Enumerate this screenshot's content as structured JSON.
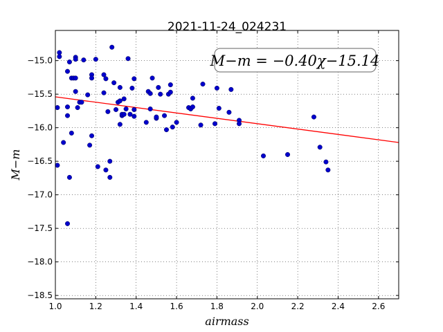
{
  "chart_data": {
    "type": "scatter",
    "title": "2021-11-24_024231",
    "xlabel": "airmass",
    "ylabel": "M−m",
    "xlim": [
      1.0,
      2.7
    ],
    "ylim": [
      -18.55,
      -14.55
    ],
    "y_inverted": true,
    "grid": true,
    "x_ticks": [
      "1.0",
      "1.2",
      "1.4",
      "1.6",
      "1.8",
      "2.0",
      "2.2",
      "2.4",
      "2.6"
    ],
    "y_ticks": [
      "−15.0",
      "−15.5",
      "−16.0",
      "−16.5",
      "−17.0",
      "−17.5",
      "−18.0",
      "−18.5"
    ],
    "annotation": "M−m = −0.40χ−15.14",
    "fit": {
      "slope": -0.4,
      "intercept": -15.14,
      "color": "#ff0000"
    },
    "point_color": "#0000cc",
    "points": [
      [
        1.01,
        -16.56
      ],
      [
        1.01,
        -15.7
      ],
      [
        1.02,
        -14.88
      ],
      [
        1.02,
        -14.94
      ],
      [
        1.04,
        -16.22
      ],
      [
        1.06,
        -17.43
      ],
      [
        1.06,
        -15.16
      ],
      [
        1.06,
        -15.69
      ],
      [
        1.06,
        -15.82
      ],
      [
        1.07,
        -16.74
      ],
      [
        1.07,
        -15.02
      ],
      [
        1.08,
        -16.08
      ],
      [
        1.08,
        -15.26
      ],
      [
        1.09,
        -15.26
      ],
      [
        1.1,
        -14.95
      ],
      [
        1.1,
        -14.98
      ],
      [
        1.1,
        -15.46
      ],
      [
        1.1,
        -15.26
      ],
      [
        1.11,
        -15.7
      ],
      [
        1.12,
        -15.62
      ],
      [
        1.13,
        -15.62
      ],
      [
        1.14,
        -14.99
      ],
      [
        1.16,
        -15.51
      ],
      [
        1.17,
        -16.26
      ],
      [
        1.18,
        -16.12
      ],
      [
        1.18,
        -15.21
      ],
      [
        1.18,
        -15.26
      ],
      [
        1.2,
        -14.98
      ],
      [
        1.21,
        -16.58
      ],
      [
        1.24,
        -15.48
      ],
      [
        1.24,
        -15.21
      ],
      [
        1.25,
        -16.63
      ],
      [
        1.25,
        -15.27
      ],
      [
        1.26,
        -15.76
      ],
      [
        1.27,
        -16.5
      ],
      [
        1.27,
        -16.74
      ],
      [
        1.28,
        -14.8
      ],
      [
        1.29,
        -15.33
      ],
      [
        1.3,
        -15.73
      ],
      [
        1.31,
        -15.62
      ],
      [
        1.32,
        -15.95
      ],
      [
        1.32,
        -15.6
      ],
      [
        1.32,
        -15.4
      ],
      [
        1.33,
        -15.82
      ],
      [
        1.33,
        -15.8
      ],
      [
        1.34,
        -15.57
      ],
      [
        1.34,
        -15.8
      ],
      [
        1.35,
        -15.72
      ],
      [
        1.36,
        -14.97
      ],
      [
        1.37,
        -15.8
      ],
      [
        1.38,
        -15.41
      ],
      [
        1.39,
        -15.27
      ],
      [
        1.39,
        -15.73
      ],
      [
        1.39,
        -15.83
      ],
      [
        1.45,
        -15.92
      ],
      [
        1.46,
        -15.46
      ],
      [
        1.47,
        -15.49
      ],
      [
        1.47,
        -15.72
      ],
      [
        1.48,
        -15.26
      ],
      [
        1.5,
        -15.86
      ],
      [
        1.5,
        -15.84
      ],
      [
        1.51,
        -15.4
      ],
      [
        1.52,
        -15.5
      ],
      [
        1.54,
        -15.82
      ],
      [
        1.55,
        -16.03
      ],
      [
        1.56,
        -15.5
      ],
      [
        1.57,
        -15.36
      ],
      [
        1.57,
        -15.47
      ],
      [
        1.58,
        -15.99
      ],
      [
        1.6,
        -15.92
      ],
      [
        1.66,
        -15.7
      ],
      [
        1.67,
        -15.72
      ],
      [
        1.68,
        -15.69
      ],
      [
        1.68,
        -15.56
      ],
      [
        1.72,
        -15.96
      ],
      [
        1.73,
        -15.35
      ],
      [
        1.79,
        -15.94
      ],
      [
        1.8,
        -15.41
      ],
      [
        1.81,
        -15.71
      ],
      [
        1.86,
        -15.77
      ],
      [
        1.87,
        -15.43
      ],
      [
        1.91,
        -15.89
      ],
      [
        1.91,
        -15.94
      ],
      [
        2.03,
        -16.42
      ],
      [
        2.15,
        -16.4
      ],
      [
        2.28,
        -15.84
      ],
      [
        2.31,
        -16.29
      ],
      [
        2.34,
        -16.51
      ],
      [
        2.35,
        -16.63
      ]
    ]
  }
}
